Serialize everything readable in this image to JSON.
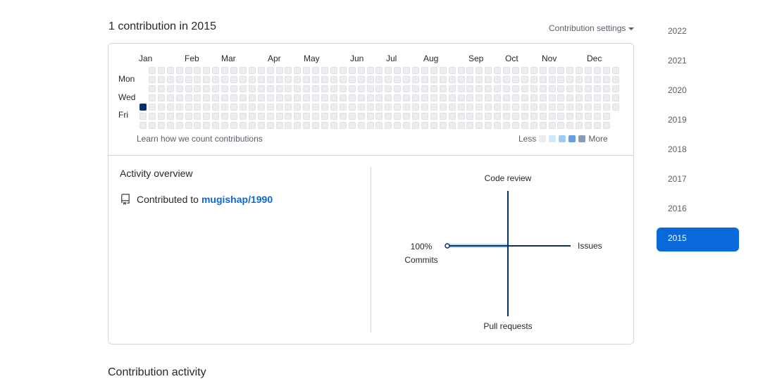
{
  "header": {
    "title": "1 contribution in 2015",
    "settings_label": "Contribution settings"
  },
  "calendar": {
    "months": [
      "Jan",
      "Feb",
      "Mar",
      "Apr",
      "May",
      "Jun",
      "Jul",
      "Aug",
      "Sep",
      "Oct",
      "Nov",
      "Dec"
    ],
    "days": [
      "Mon",
      "Wed",
      "Fri"
    ],
    "weeks": 53,
    "active_cell": {
      "week": 0,
      "day": 4,
      "level": 4
    },
    "learn_link": "Learn how we count contributions",
    "legend_less": "Less",
    "legend_more": "More",
    "legend_colors": [
      "#ebedf0",
      "#cfe8fc",
      "#9ecbf3",
      "#5fa0e0",
      "#8a9bb3"
    ],
    "cell_color_empty": "#ebedf0",
    "cell_color_active": "#0a3069"
  },
  "activity": {
    "title": "Activity overview",
    "contributed_prefix": "Contributed to",
    "repo_owner": "mugishap",
    "repo_name": "/1990",
    "radar": {
      "code_review": "Code review",
      "issues": "Issues",
      "pull_requests": "Pull requests",
      "commits_percent": "100%",
      "commits_label": "Commits",
      "commits_value": 100,
      "code_review_value": 0,
      "issues_value": 0,
      "pull_requests_value": 0
    }
  },
  "years": [
    "2022",
    "2021",
    "2020",
    "2019",
    "2018",
    "2017",
    "2016",
    "2015"
  ],
  "selected_year": "2015",
  "accent_color": "#0969da",
  "below_heading": "Contribution activity"
}
